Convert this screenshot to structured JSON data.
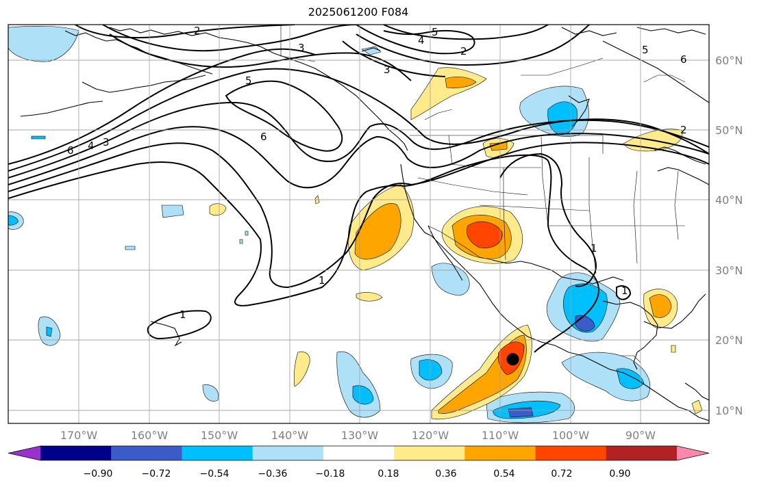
{
  "title": "2025061200 F084",
  "map": {
    "lon_range": [
      -180,
      -80
    ],
    "lat_range": [
      8,
      66
    ],
    "lon_labels": [
      "170°W",
      "160°W",
      "150°W",
      "140°W",
      "130°W",
      "120°W",
      "110°W",
      "100°W",
      "90°W"
    ],
    "lat_labels": [
      "60°N",
      "50°N",
      "40°N",
      "30°N",
      "20°N",
      "10°N"
    ],
    "contour_labels": [
      "2",
      "5",
      "4",
      "3",
      "2",
      "3",
      "5",
      "6",
      "5",
      "6",
      "2",
      "6",
      "4",
      "3",
      "1",
      "1",
      "1",
      "1"
    ],
    "marker": {
      "name": "storm-center-marker",
      "lon": -108,
      "lat": 17.3
    }
  },
  "colorbar": {
    "colors": [
      "#9932cc",
      "#00008b",
      "#3a5bc8",
      "#00bfff",
      "#aee0f8",
      "#ffffff",
      "#ffeb8c",
      "#ffa500",
      "#ff4500",
      "#b22222",
      "#ff88aa"
    ],
    "tick_labels": [
      "−0.90",
      "−0.72",
      "−0.54",
      "−0.36",
      "−0.18",
      "0.18",
      "0.36",
      "0.54",
      "0.72",
      "0.90"
    ]
  }
}
